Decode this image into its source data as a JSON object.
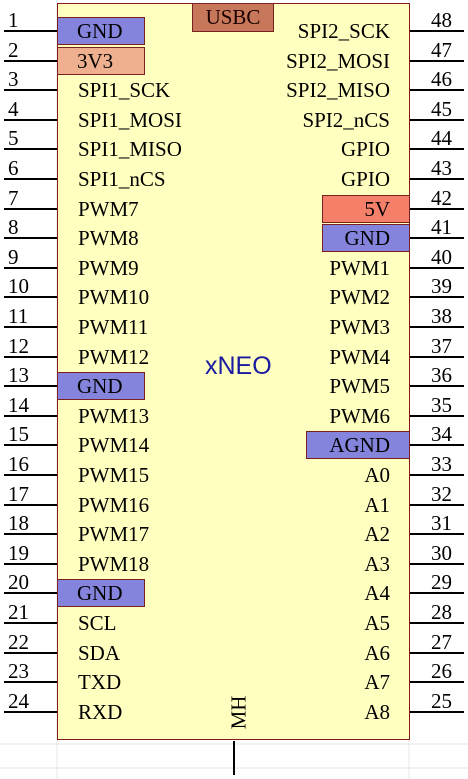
{
  "chip": {
    "name": "xNEO",
    "usb_label": "USBC",
    "mount_label": "MH"
  },
  "colors": {
    "body": "#ffffc0",
    "border": "#8a1a1a",
    "gnd": "#8484dc",
    "power_3v3": "#eeb08e",
    "power_5v": "#f4806a",
    "usbc": "#c8785a",
    "chip_name": "#1a1aa0"
  },
  "left_pins": [
    {
      "num": "1",
      "label": "GND",
      "style": "gnd"
    },
    {
      "num": "2",
      "label": "3V3",
      "style": "pwr"
    },
    {
      "num": "3",
      "label": "SPI1_SCK",
      "style": ""
    },
    {
      "num": "4",
      "label": "SPI1_MOSI",
      "style": ""
    },
    {
      "num": "5",
      "label": "SPI1_MISO",
      "style": ""
    },
    {
      "num": "6",
      "label": "SPI1_nCS",
      "style": ""
    },
    {
      "num": "7",
      "label": "PWM7",
      "style": ""
    },
    {
      "num": "8",
      "label": "PWM8",
      "style": ""
    },
    {
      "num": "9",
      "label": "PWM9",
      "style": ""
    },
    {
      "num": "10",
      "label": "PWM10",
      "style": ""
    },
    {
      "num": "11",
      "label": "PWM11",
      "style": ""
    },
    {
      "num": "12",
      "label": "PWM12",
      "style": ""
    },
    {
      "num": "13",
      "label": "GND",
      "style": "gnd"
    },
    {
      "num": "14",
      "label": "PWM13",
      "style": ""
    },
    {
      "num": "15",
      "label": "PWM14",
      "style": ""
    },
    {
      "num": "16",
      "label": "PWM15",
      "style": ""
    },
    {
      "num": "17",
      "label": "PWM16",
      "style": ""
    },
    {
      "num": "18",
      "label": "PWM17",
      "style": ""
    },
    {
      "num": "19",
      "label": "PWM18",
      "style": ""
    },
    {
      "num": "20",
      "label": "GND",
      "style": "gnd"
    },
    {
      "num": "21",
      "label": "SCL",
      "style": ""
    },
    {
      "num": "22",
      "label": "SDA",
      "style": ""
    },
    {
      "num": "23",
      "label": "TXD",
      "style": ""
    },
    {
      "num": "24",
      "label": "RXD",
      "style": ""
    }
  ],
  "right_pins": [
    {
      "num": "48",
      "label": "SPI2_SCK",
      "style": ""
    },
    {
      "num": "47",
      "label": "SPI2_MOSI",
      "style": ""
    },
    {
      "num": "46",
      "label": "SPI2_MISO",
      "style": ""
    },
    {
      "num": "45",
      "label": "SPI2_nCS",
      "style": ""
    },
    {
      "num": "44",
      "label": "GPIO",
      "style": ""
    },
    {
      "num": "43",
      "label": "GPIO",
      "style": ""
    },
    {
      "num": "42",
      "label": "5V",
      "style": "v5"
    },
    {
      "num": "41",
      "label": "GND",
      "style": "gnd"
    },
    {
      "num": "40",
      "label": "PWM1",
      "style": ""
    },
    {
      "num": "39",
      "label": "PWM2",
      "style": ""
    },
    {
      "num": "38",
      "label": "PWM3",
      "style": ""
    },
    {
      "num": "37",
      "label": "PWM4",
      "style": ""
    },
    {
      "num": "36",
      "label": "PWM5",
      "style": ""
    },
    {
      "num": "35",
      "label": "PWM6",
      "style": ""
    },
    {
      "num": "34",
      "label": "AGND",
      "style": "gnd"
    },
    {
      "num": "33",
      "label": "A0",
      "style": ""
    },
    {
      "num": "32",
      "label": "A1",
      "style": ""
    },
    {
      "num": "31",
      "label": "A2",
      "style": ""
    },
    {
      "num": "30",
      "label": "A3",
      "style": ""
    },
    {
      "num": "29",
      "label": "A4",
      "style": ""
    },
    {
      "num": "28",
      "label": "A5",
      "style": ""
    },
    {
      "num": "27",
      "label": "A6",
      "style": ""
    },
    {
      "num": "26",
      "label": "A7",
      "style": ""
    },
    {
      "num": "25",
      "label": "A8",
      "style": ""
    }
  ]
}
